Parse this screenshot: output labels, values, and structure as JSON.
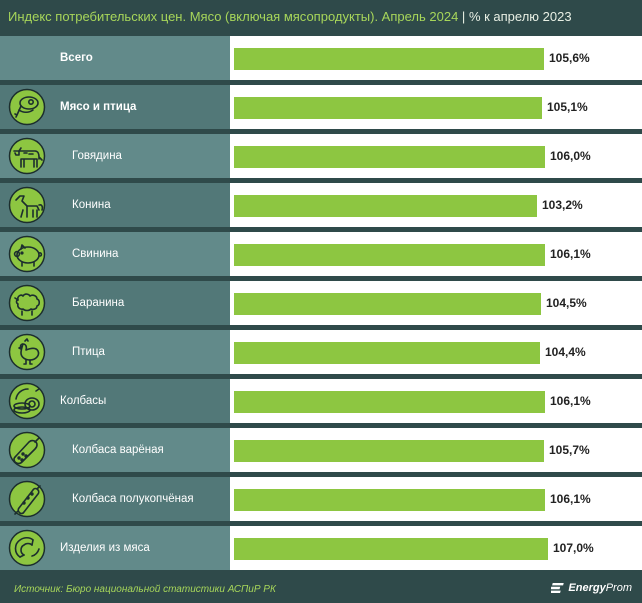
{
  "title": {
    "main": "Индекс потребительских цен. Мясо (включая мясопродукты). Апрель 2024",
    "separator": "|",
    "unit": "% к апрелю 2023"
  },
  "chart_data": {
    "type": "bar",
    "orientation": "horizontal",
    "title": "Индекс потребительских цен. Мясо (включая мясопродукты). Апрель 2024",
    "unit_label": "% к апрелю 2023",
    "categories": [
      "Всего",
      "Мясо и птица",
      "Говядина",
      "Конина",
      "Свинина",
      "Баранина",
      "Птица",
      "Колбасы",
      "Колбаса варёная",
      "Колбаса полукопчёная",
      "Изделия из мяса"
    ],
    "values": [
      105.6,
      105.1,
      106.0,
      103.2,
      106.1,
      104.5,
      104.4,
      106.1,
      105.7,
      106.1,
      107.0
    ],
    "value_labels": [
      "105,6%",
      "105,1%",
      "106,0%",
      "103,2%",
      "106,1%",
      "104,5%",
      "104,4%",
      "106,1%",
      "105,7%",
      "106,1%",
      "107,0%"
    ],
    "xlim": [
      0,
      107.0
    ]
  },
  "rows": [
    {
      "label": "Всего",
      "icon": "none",
      "bold": true,
      "indent": "top"
    },
    {
      "label": "Мясо и птица",
      "icon": "meat-icon",
      "bold": true,
      "indent": "group"
    },
    {
      "label": "Говядина",
      "icon": "cow-icon",
      "bold": false,
      "indent": "sub"
    },
    {
      "label": "Конина",
      "icon": "horse-icon",
      "bold": false,
      "indent": "sub"
    },
    {
      "label": "Свинина",
      "icon": "pig-icon",
      "bold": false,
      "indent": "sub"
    },
    {
      "label": "Баранина",
      "icon": "sheep-icon",
      "bold": false,
      "indent": "sub"
    },
    {
      "label": "Птица",
      "icon": "chicken-icon",
      "bold": false,
      "indent": "sub"
    },
    {
      "label": "Колбасы",
      "icon": "sausage-stack-icon",
      "bold": false,
      "indent": "group"
    },
    {
      "label": "Колбаса варёная",
      "icon": "boiled-sausage-icon",
      "bold": false,
      "indent": "sub"
    },
    {
      "label": "Колбаса полукопчёная",
      "icon": "smoked-sausage-icon",
      "bold": false,
      "indent": "sub"
    },
    {
      "label": "Изделия из мяса",
      "icon": "sausage-ring-icon",
      "bold": false,
      "indent": "group"
    }
  ],
  "colors": {
    "title": "#a7d65a",
    "bar": "#8dc641",
    "row_shade_a": "#628a8a",
    "row_shade_b": "#527878",
    "icon_fill": "#8dc641",
    "icon_stroke": "#1c2e2e"
  },
  "footer": {
    "source": "Источник: Бюро национальной статистики АСПиР РК",
    "logo_bold": "Energy",
    "logo_light": "Prom"
  }
}
